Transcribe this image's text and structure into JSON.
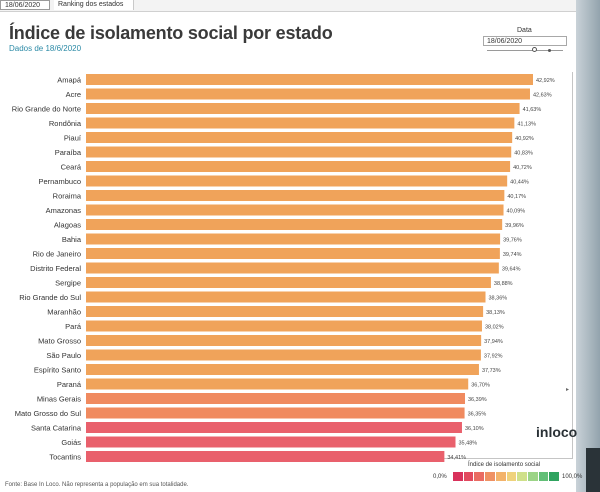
{
  "tabs": {
    "date_tab": "18/06/2020",
    "ranking_tab": "Ranking dos estados"
  },
  "header": {
    "title": "Índice de isolamento social por estado",
    "subtitle": "Dados de 18/6/2020"
  },
  "filter": {
    "label": "Data",
    "value": "18/06/2020"
  },
  "chart_data": {
    "type": "bar",
    "orientation": "horizontal",
    "title": "Índice de isolamento social por estado",
    "categories": [
      "Amapá",
      "Acre",
      "Rio Grande do Norte",
      "Rondônia",
      "Piauí",
      "Paraíba",
      "Ceará",
      "Pernambuco",
      "Roraima",
      "Amazonas",
      "Alagoas",
      "Bahia",
      "Rio de Janeiro",
      "Distrito Federal",
      "Sergipe",
      "Rio Grande do Sul",
      "Maranhão",
      "Pará",
      "Mato Grosso",
      "São Paulo",
      "Espírito Santo",
      "Paraná",
      "Minas Gerais",
      "Mato Grosso do Sul",
      "Santa Catarina",
      "Goiás",
      "Tocantins"
    ],
    "values": [
      42.92,
      42.63,
      41.63,
      41.13,
      40.92,
      40.83,
      40.72,
      40.44,
      40.17,
      40.09,
      39.96,
      39.76,
      39.74,
      39.64,
      38.88,
      38.36,
      38.13,
      38.02,
      37.94,
      37.92,
      37.73,
      36.7,
      36.39,
      36.35,
      36.1,
      35.48,
      34.41
    ],
    "value_labels": [
      "42,92%",
      "42,63%",
      "41,63%",
      "41,13%",
      "40,92%",
      "40,83%",
      "40,72%",
      "40,44%",
      "40,17%",
      "40,09%",
      "39,96%",
      "39,76%",
      "39,74%",
      "39,64%",
      "38,88%",
      "38,36%",
      "38,13%",
      "38,02%",
      "37,94%",
      "37,92%",
      "37,73%",
      "36,70%",
      "36,39%",
      "36,35%",
      "36,10%",
      "35,48%",
      "34,41%"
    ],
    "xlim": [
      0,
      42.92
    ],
    "colors": {
      "high": "#f0a35a",
      "mid": "#f08a5f",
      "low": "#e9606c"
    }
  },
  "legend": {
    "title": "Índice de isolamento social",
    "min_label": "0,0%",
    "max_label": "100,0%",
    "ramp_colors": [
      "#d8315b",
      "#e2495e",
      "#ea6b62",
      "#ef9163",
      "#f3b36a",
      "#efd27c",
      "#cfe08a",
      "#9cd487",
      "#62bf77",
      "#2fa35f"
    ]
  },
  "brand": {
    "logo_text": "inloco"
  },
  "footer": {
    "source": "Fonte: Base In Loco. Não representa a população em sua totalidade."
  },
  "misc": {
    "pointer_glyph": "▸"
  }
}
